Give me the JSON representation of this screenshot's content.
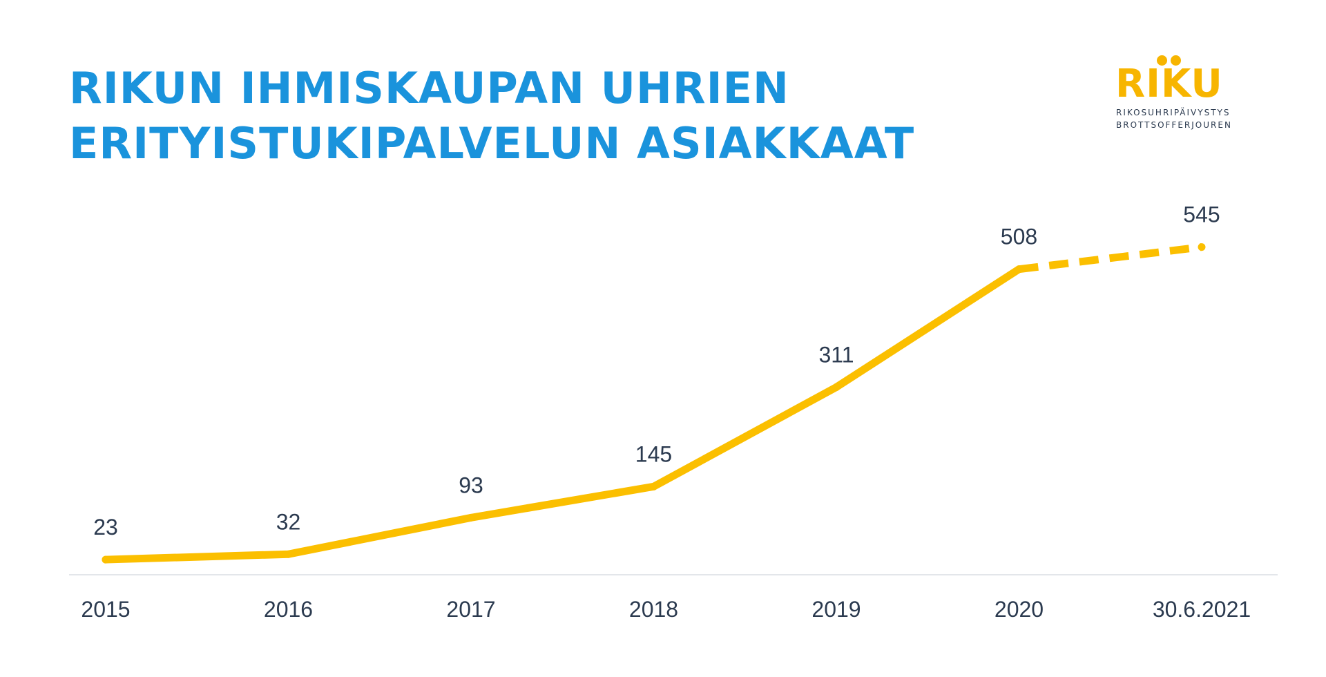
{
  "title_lines": [
    "RIKUN IHMISKAUPAN UHRIEN",
    "ERITYISTUKIPALVELUN ASIAKKAAT"
  ],
  "logo": {
    "word": "RIKU",
    "line1": "RIKOSUHRIPÄIVYSTYS",
    "line2": "BROTTSOFFERJOUREN",
    "color": "#f7b500"
  },
  "colors": {
    "title": "#1a93dc",
    "line": "#fbbf00",
    "text": "#2b3a4f",
    "axis": "#e3e6ea"
  },
  "chart_data": {
    "type": "line",
    "title": "RIKUN IHMISKAUPAN UHRIEN ERITYISTUKIPALVELUN ASIAKKAAT",
    "categories": [
      "2015",
      "2016",
      "2017",
      "2018",
      "2019",
      "2020",
      "30.6.2021"
    ],
    "series": [
      {
        "values": [
          23,
          32,
          93,
          145,
          311,
          508,
          545
        ],
        "dashed_last_segment": true
      }
    ],
    "data_labels": [
      "23",
      "32",
      "93",
      "145",
      "311",
      "508",
      "545"
    ],
    "xlabel": "",
    "ylabel": "",
    "ylim": [
      0,
      600
    ],
    "grid": false,
    "legend": "none"
  }
}
